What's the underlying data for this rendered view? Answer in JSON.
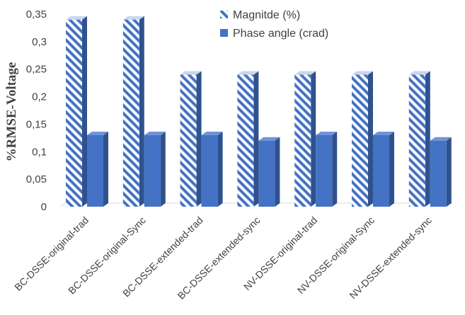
{
  "chart_data": {
    "type": "bar",
    "style": "3d-clustered-column",
    "ylabel": "%RMSE-Voltage",
    "xlabel": "",
    "ylim": [
      0,
      0.35
    ],
    "ytick_step": 0.05,
    "yticks": [
      "0",
      "0,05",
      "0,1",
      "0,15",
      "0,2",
      "0,25",
      "0,3",
      "0,35"
    ],
    "grid": false,
    "legend_position": "top-right",
    "categories": [
      "BC-DSSE-original-trad",
      "BC-DSSE-original-Sync",
      "BC-DSSE-extended-trad",
      "BC-DSSE-extended-sync",
      "NV-DSSE-original-trad",
      "NV-DSSE-original-Sync",
      "NV-DSSE-extended-sync"
    ],
    "series": [
      {
        "name": "Magnitde (%)",
        "values": [
          0.34,
          0.34,
          0.24,
          0.24,
          0.24,
          0.24,
          0.24
        ],
        "color": "#4472c4",
        "pattern": "diagonal-stripes"
      },
      {
        "name": "Phase angle (crad)",
        "values": [
          0.13,
          0.13,
          0.13,
          0.12,
          0.13,
          0.13,
          0.12
        ],
        "color": "#4472c4",
        "pattern": "solid"
      }
    ]
  }
}
